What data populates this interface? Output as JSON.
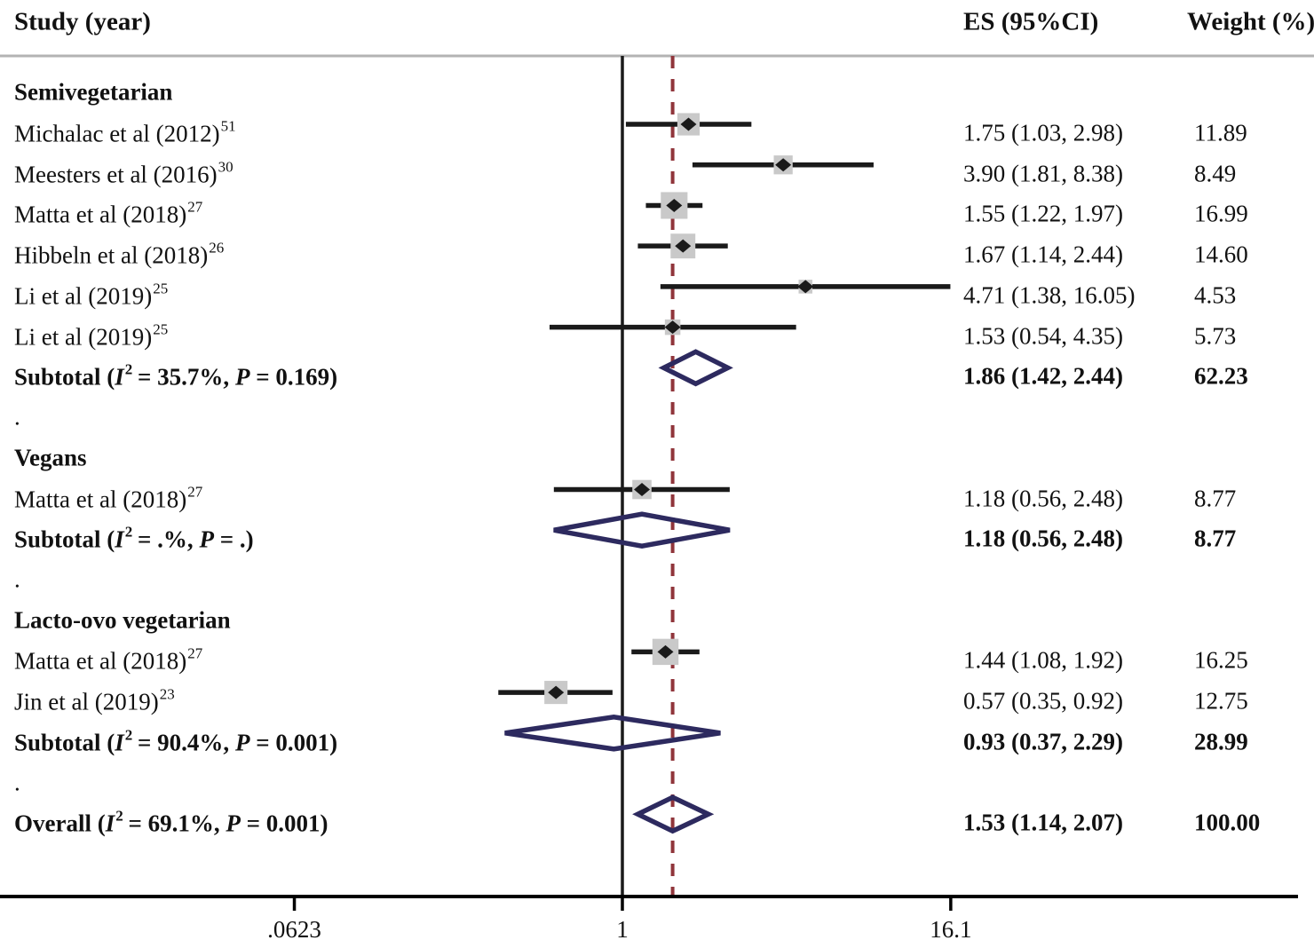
{
  "header": {
    "study": "Study (year)",
    "es": "ES (95%CI)",
    "weight": "Weight (%)"
  },
  "colors": {
    "diamond_outline": "#2d2a5f",
    "ref_dashed_line": "#90353b",
    "marker_square": "#c9c9c9",
    "ci_line": "#1a1a1a",
    "null_line": "#1a1a1a",
    "axis_line": "#000000",
    "top_separator": "#b3b3b3",
    "text": "#111111"
  },
  "chart_data": {
    "type": "forest",
    "x_scale": "log",
    "axis": {
      "ticks": [
        0.0623,
        1,
        16.1
      ],
      "tick_labels": [
        ".0623",
        "1",
        "16.1"
      ],
      "null_reference": 1,
      "dashed_reference": 1.53
    },
    "rows": [
      {
        "kind": "group",
        "label": "Semivegetarian"
      },
      {
        "kind": "study",
        "label": "Michalac et al (2012)",
        "sup": "51",
        "es": 1.75,
        "lo": 1.03,
        "hi": 2.98,
        "weight": 11.89,
        "es_text": "1.75 (1.03, 2.98)",
        "weight_text": "11.89"
      },
      {
        "kind": "study",
        "label": "Meesters et al (2016)",
        "sup": "30",
        "es": 3.9,
        "lo": 1.81,
        "hi": 8.38,
        "weight": 8.49,
        "es_text": "3.90 (1.81, 8.38)",
        "weight_text": "8.49"
      },
      {
        "kind": "study",
        "label": "Matta et al (2018)",
        "sup": "27",
        "es": 1.55,
        "lo": 1.22,
        "hi": 1.97,
        "weight": 16.99,
        "es_text": "1.55 (1.22, 1.97)",
        "weight_text": "16.99"
      },
      {
        "kind": "study",
        "label": "Hibbeln et al (2018)",
        "sup": "26",
        "es": 1.67,
        "lo": 1.14,
        "hi": 2.44,
        "weight": 14.6,
        "es_text": "1.67 (1.14, 2.44)",
        "weight_text": "14.60"
      },
      {
        "kind": "study",
        "label": "Li et al (2019)",
        "sup": "25",
        "es": 4.71,
        "lo": 1.38,
        "hi": 16.05,
        "weight": 4.53,
        "es_text": "4.71 (1.38, 16.05)",
        "weight_text": "4.53"
      },
      {
        "kind": "study",
        "label": "Li et al (2019)",
        "sup": "25",
        "es": 1.53,
        "lo": 0.54,
        "hi": 4.35,
        "weight": 5.73,
        "es_text": "1.53 (0.54, 4.35)",
        "weight_text": "5.73"
      },
      {
        "kind": "subtotal",
        "label": "Subtotal",
        "i2": "35.7",
        "p": "0.169",
        "es": 1.86,
        "lo": 1.42,
        "hi": 2.44,
        "es_text": "1.86 (1.42, 2.44)",
        "weight_text": "62.23"
      },
      {
        "kind": "dot",
        "label": "."
      },
      {
        "kind": "group",
        "label": "Vegans"
      },
      {
        "kind": "study",
        "label": "Matta et al (2018)",
        "sup": "27",
        "es": 1.18,
        "lo": 0.56,
        "hi": 2.48,
        "weight": 8.77,
        "es_text": "1.18 (0.56, 2.48)",
        "weight_text": "8.77"
      },
      {
        "kind": "subtotal",
        "label": "Subtotal",
        "i2": ".",
        "p": ".",
        "es": 1.18,
        "lo": 0.56,
        "hi": 2.48,
        "es_text": "1.18 (0.56, 2.48)",
        "weight_text": "8.77"
      },
      {
        "kind": "dot",
        "label": "."
      },
      {
        "kind": "group",
        "label": "Lacto-ovo vegetarian"
      },
      {
        "kind": "study",
        "label": "Matta et al (2018)",
        "sup": "27",
        "es": 1.44,
        "lo": 1.08,
        "hi": 1.92,
        "weight": 16.25,
        "es_text": "1.44 (1.08, 1.92)",
        "weight_text": "16.25"
      },
      {
        "kind": "study",
        "label": "Jin et al (2019)",
        "sup": "23",
        "es": 0.57,
        "lo": 0.35,
        "hi": 0.92,
        "weight": 12.75,
        "es_text": "0.57 (0.35, 0.92)",
        "weight_text": "12.75"
      },
      {
        "kind": "subtotal",
        "label": "Subtotal",
        "i2": "90.4",
        "p": "0.001",
        "es": 0.93,
        "lo": 0.37,
        "hi": 2.29,
        "es_text": "0.93 (0.37, 2.29)",
        "weight_text": "28.99"
      },
      {
        "kind": "dot",
        "label": "."
      },
      {
        "kind": "overall",
        "label": "Overall",
        "i2": "69.1",
        "p": "0.001",
        "es": 1.53,
        "lo": 1.14,
        "hi": 2.07,
        "es_text": "1.53 (1.14, 2.07)",
        "weight_text": "100.00"
      }
    ]
  }
}
